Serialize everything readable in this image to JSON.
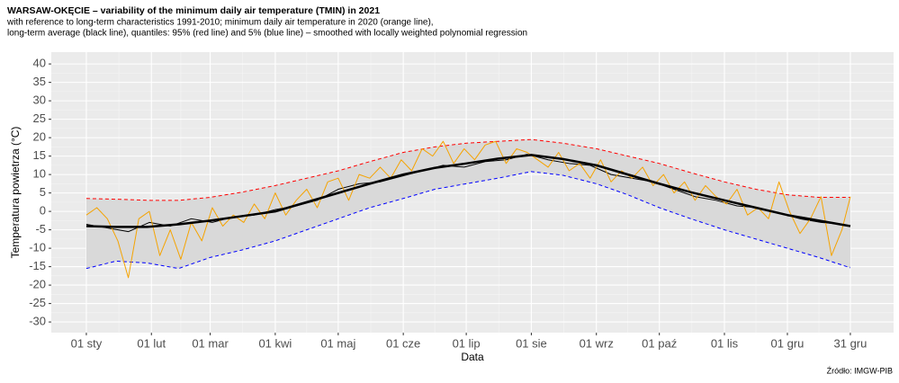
{
  "chart_data": {
    "type": "line",
    "title": "WARSAW-OKĘCIE – variability of the minimum daily air temperature (TMIN) in 2021",
    "subtitle": [
      "with reference to long-term characteristics 1991-2010; minimum daily air temperature in 2020 (orange line),",
      "long-term average (black line), quantiles: 95% (red line) and 5% (blue line) – smoothed with locally weighted polynomial regression"
    ],
    "xlabel": "Data",
    "ylabel": "Temperatura powietrza (°C)",
    "source": "Źródło: IMGW-PIB",
    "xlim": [
      -15.7,
      385.6
    ],
    "ylim": [
      -32.9,
      43.2
    ],
    "xticks": [
      {
        "value": 1,
        "label": "01 sty"
      },
      {
        "value": 32,
        "label": "01 lut"
      },
      {
        "value": 60,
        "label": "01 mar"
      },
      {
        "value": 91,
        "label": "01 kwi"
      },
      {
        "value": 121,
        "label": "01 maj"
      },
      {
        "value": 152,
        "label": "01 cze"
      },
      {
        "value": 182,
        "label": "01 lip"
      },
      {
        "value": 213,
        "label": "01 sie"
      },
      {
        "value": 244,
        "label": "01 wrz"
      },
      {
        "value": 274,
        "label": "01 paź"
      },
      {
        "value": 305,
        "label": "01 lis"
      },
      {
        "value": 335,
        "label": "01 gru"
      },
      {
        "value": 365,
        "label": "31 gru"
      }
    ],
    "yticks": [
      -30,
      -25,
      -20,
      -15,
      -10,
      -5,
      0,
      5,
      10,
      15,
      20,
      25,
      30,
      35,
      40
    ],
    "grid": true,
    "band_color": "#d9d9d9",
    "series": [
      {
        "color": "#ff0000",
        "dashed": true,
        "width": 1,
        "x": [
          1,
          15,
          30,
          45,
          60,
          75,
          91,
          106,
          121,
          136,
          152,
          167,
          182,
          197,
          213,
          228,
          244,
          259,
          274,
          289,
          305,
          320,
          335,
          350,
          365
        ],
        "values": [
          3.5,
          3.3,
          3,
          3,
          3.8,
          5.2,
          7,
          9,
          11,
          13.5,
          16,
          17.5,
          18.5,
          19,
          19.5,
          18.5,
          17,
          15,
          13,
          10.5,
          8,
          6,
          4.5,
          3.8,
          3.8
        ]
      },
      {
        "color": "#0000ff",
        "dashed": true,
        "width": 1,
        "x": [
          1,
          15,
          30,
          45,
          60,
          75,
          91,
          106,
          121,
          136,
          152,
          167,
          182,
          197,
          213,
          228,
          244,
          259,
          274,
          289,
          305,
          320,
          335,
          350,
          365
        ],
        "values": [
          -15.5,
          -13.5,
          -14,
          -15.5,
          -12.5,
          -10.5,
          -8,
          -5,
          -2,
          1,
          3.5,
          6,
          7.5,
          9,
          10.8,
          9.8,
          7.5,
          4.5,
          1,
          -2,
          -5,
          -7.5,
          -10,
          -12.5,
          -15.3
        ]
      },
      {
        "color": "#000000",
        "dashed": false,
        "width": 1,
        "x": [
          1,
          11,
          21,
          31,
          41,
          51,
          61,
          71,
          81,
          91,
          101,
          111,
          121,
          131,
          141,
          151,
          161,
          171,
          181,
          191,
          201,
          211,
          221,
          231,
          241,
          251,
          261,
          271,
          281,
          291,
          301,
          311,
          321,
          331,
          341,
          351,
          361,
          365
        ],
        "values": [
          -3.5,
          -4.5,
          -5.5,
          -3,
          -4,
          -2,
          -3,
          -1.5,
          -1,
          0.5,
          1.5,
          3,
          6,
          7.5,
          8,
          9.5,
          11,
          12.5,
          12,
          13.5,
          14,
          15.5,
          14,
          13,
          12.5,
          10,
          9,
          8,
          6,
          4,
          3,
          1.5,
          1,
          -0.5,
          -2,
          -3,
          -3.5,
          -4
        ]
      },
      {
        "color": "#f5a300",
        "dashed": false,
        "width": 1,
        "x": [
          1,
          6,
          11,
          16,
          21,
          26,
          31,
          36,
          41,
          46,
          51,
          56,
          61,
          66,
          71,
          76,
          81,
          86,
          91,
          96,
          101,
          106,
          111,
          116,
          121,
          126,
          131,
          136,
          141,
          146,
          151,
          156,
          161,
          166,
          171,
          176,
          181,
          186,
          191,
          196,
          201,
          206,
          211,
          216,
          221,
          226,
          231,
          236,
          241,
          246,
          251,
          256,
          261,
          266,
          271,
          276,
          281,
          286,
          291,
          296,
          301,
          306,
          311,
          316,
          321,
          326,
          331,
          336,
          341,
          346,
          351,
          356,
          361,
          365
        ],
        "values": [
          -1,
          1,
          -2,
          -8,
          -18,
          -2,
          0,
          -12,
          -5,
          -13,
          -3,
          -8,
          1,
          -4,
          -1,
          -3,
          2,
          -2,
          5,
          -1,
          3,
          6,
          1,
          8,
          9,
          3,
          10,
          9,
          12,
          9,
          14,
          11,
          17,
          15,
          19,
          13,
          17,
          14,
          18,
          19,
          13,
          17,
          16,
          14,
          12,
          16,
          11,
          13,
          9,
          14,
          8,
          11,
          9,
          12,
          7,
          10,
          5,
          8,
          3,
          7,
          4,
          2,
          6,
          -1,
          1,
          -2,
          8,
          0,
          -6,
          -2,
          4,
          -12,
          -5,
          4
        ]
      },
      {
        "color": "#000000",
        "dashed": false,
        "width": 2.5,
        "x": [
          1,
          15,
          30,
          45,
          60,
          75,
          91,
          106,
          121,
          136,
          152,
          167,
          182,
          197,
          213,
          228,
          244,
          259,
          274,
          289,
          305,
          320,
          335,
          350,
          365
        ],
        "values": [
          -4,
          -4.2,
          -4.2,
          -3.5,
          -2.5,
          -1.3,
          0,
          2.5,
          5,
          7.5,
          10,
          11.8,
          13,
          14.3,
          15.3,
          14.2,
          12.5,
          10,
          7.5,
          5.2,
          3,
          1,
          -1,
          -2.5,
          -4
        ]
      }
    ]
  }
}
